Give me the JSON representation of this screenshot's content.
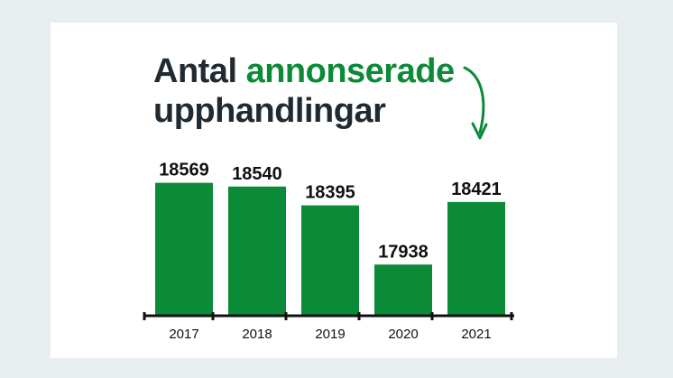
{
  "title": {
    "part1": "Antal",
    "part2": "annonserade",
    "line2": "upphandlingar"
  },
  "colors": {
    "bar": "#0b8a37",
    "accent": "#0b8a37",
    "title": "#1f2a33",
    "background": "#e8eef0"
  },
  "icons": {
    "arrow": "curved-arrow-icon"
  },
  "chart_data": {
    "type": "bar",
    "categories": [
      "2017",
      "2018",
      "2019",
      "2020",
      "2021"
    ],
    "values": [
      18569,
      18540,
      18395,
      17938,
      18421
    ],
    "value_labels": [
      "18569",
      "18540",
      "18395",
      "17938",
      "18421"
    ],
    "title": "Antal annonserade upphandlingar",
    "xlabel": "",
    "ylabel": "",
    "ylim": [
      17550,
      18650
    ],
    "grid": false,
    "legend": "none"
  }
}
